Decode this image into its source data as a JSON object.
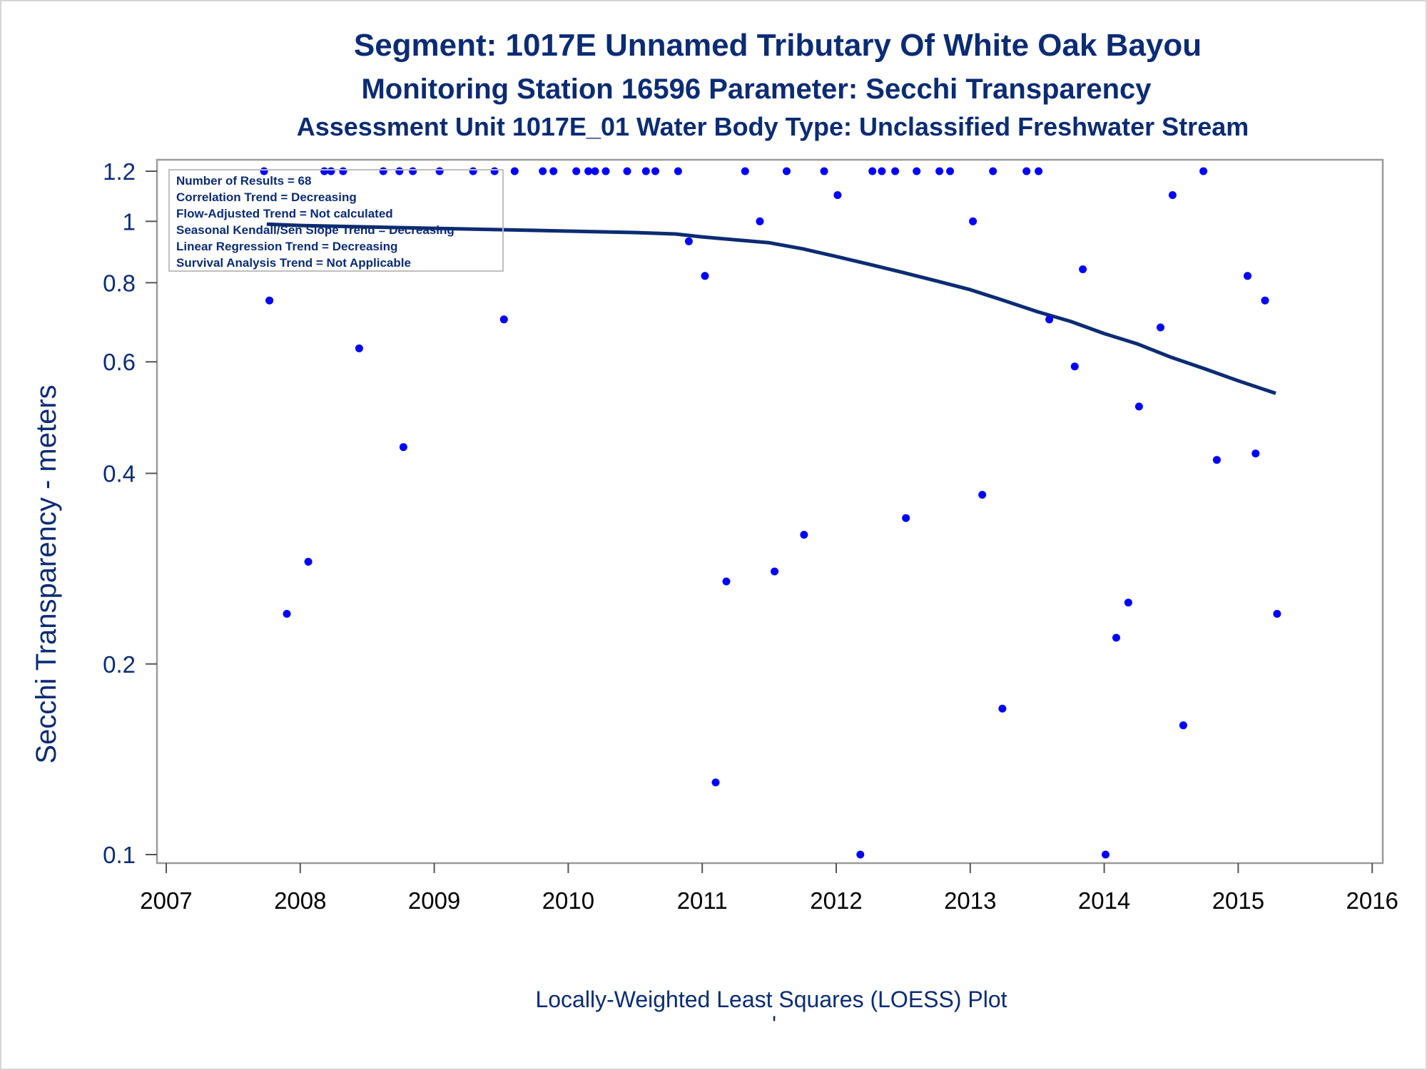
{
  "chart_data": {
    "type": "scatter",
    "title": "Segment: 1017E  Unnamed Tributary Of White Oak Bayou",
    "subtitle": "Monitoring Station 16596 Parameter: Secchi Transparency",
    "subtitle2": "Assessment Unit 1017E_01   Water Body Type: Unclassified Freshwater Stream",
    "ylabel": "Secchi Transparency - meters",
    "xlabel": "",
    "footnote": "Locally-Weighted Least Squares (LOESS) Plot",
    "footnote_mark": "'",
    "y_scale": "log",
    "xlim": [
      2007,
      2016
    ],
    "ylim": [
      0.1,
      1.2
    ],
    "x_ticks": [
      "2007",
      "2008",
      "2009",
      "2010",
      "2011",
      "2012",
      "2013",
      "2014",
      "2015",
      "2016"
    ],
    "y_ticks": [
      "0.1",
      "0.2",
      "0.4",
      "0.6",
      "0.8",
      "1",
      "1.2"
    ],
    "grid": false,
    "legend_position": "top-left",
    "stats": [
      "Number of Results = 68",
      "Correlation Trend = Decreasing",
      "Flow-Adjusted Trend = Not calculated",
      "Seasonal Kendall/Sen Slope Trend = Decreasing",
      "Linear Regression Trend = Decreasing",
      "Survival Analysis Trend = Not Applicable"
    ],
    "series": [
      {
        "kind": "points",
        "color": "#0000ff",
        "x": [
          2007.73,
          2007.77,
          2007.9,
          2008.06,
          2008.18,
          2008.23,
          2008.32,
          2008.44,
          2008.62,
          2008.74,
          2008.77,
          2008.84,
          2009.04,
          2009.29,
          2009.45,
          2009.52,
          2009.6,
          2009.81,
          2009.89,
          2010.06,
          2010.15,
          2010.2,
          2010.28,
          2010.44,
          2010.58,
          2010.65,
          2010.82,
          2010.9,
          2011.02,
          2011.1,
          2011.18,
          2011.32,
          2011.43,
          2011.54,
          2011.63,
          2011.76,
          2011.91,
          2012.01,
          2012.18,
          2012.27,
          2012.34,
          2012.44,
          2012.52,
          2012.6,
          2012.77,
          2012.85,
          2013.02,
          2013.09,
          2013.17,
          2013.24,
          2013.42,
          2013.51,
          2013.59,
          2013.78,
          2013.84,
          2014.01,
          2014.09,
          2014.18,
          2014.26,
          2014.42,
          2014.51,
          2014.59,
          2014.74,
          2014.84,
          2015.07,
          2015.13,
          2015.2,
          2015.29
        ],
        "y": [
          1.2,
          0.75,
          0.24,
          0.29,
          1.2,
          1.2,
          1.2,
          0.63,
          1.2,
          1.2,
          0.44,
          1.2,
          1.2,
          1.2,
          1.2,
          0.7,
          1.2,
          1.2,
          1.2,
          1.2,
          1.2,
          1.2,
          1.2,
          1.2,
          1.2,
          1.2,
          1.2,
          0.93,
          0.82,
          0.13,
          0.27,
          1.2,
          1.0,
          0.28,
          1.2,
          0.32,
          1.2,
          1.1,
          0.1,
          1.2,
          1.2,
          1.2,
          0.34,
          1.2,
          1.2,
          1.2,
          1.0,
          0.37,
          1.2,
          0.17,
          1.2,
          1.2,
          0.7,
          0.59,
          0.84,
          0.1,
          0.22,
          0.25,
          0.51,
          0.68,
          1.1,
          0.16,
          1.2,
          0.42,
          0.82,
          0.43,
          0.75,
          0.24
        ]
      },
      {
        "kind": "loess",
        "color": "#0b2c73",
        "x": [
          2007.75,
          2008.0,
          2008.5,
          2009.0,
          2009.5,
          2010.0,
          2010.5,
          2010.8,
          2011.0,
          2011.25,
          2011.5,
          2011.75,
          2012.0,
          2012.25,
          2012.5,
          2012.75,
          2013.0,
          2013.25,
          2013.5,
          2013.75,
          2014.0,
          2014.25,
          2014.5,
          2014.75,
          2015.0,
          2015.28
        ],
        "y": [
          0.99,
          0.985,
          0.98,
          0.975,
          0.97,
          0.965,
          0.96,
          0.955,
          0.945,
          0.935,
          0.925,
          0.905,
          0.88,
          0.855,
          0.83,
          0.805,
          0.78,
          0.75,
          0.72,
          0.695,
          0.665,
          0.64,
          0.61,
          0.585,
          0.56,
          0.535
        ]
      }
    ]
  }
}
